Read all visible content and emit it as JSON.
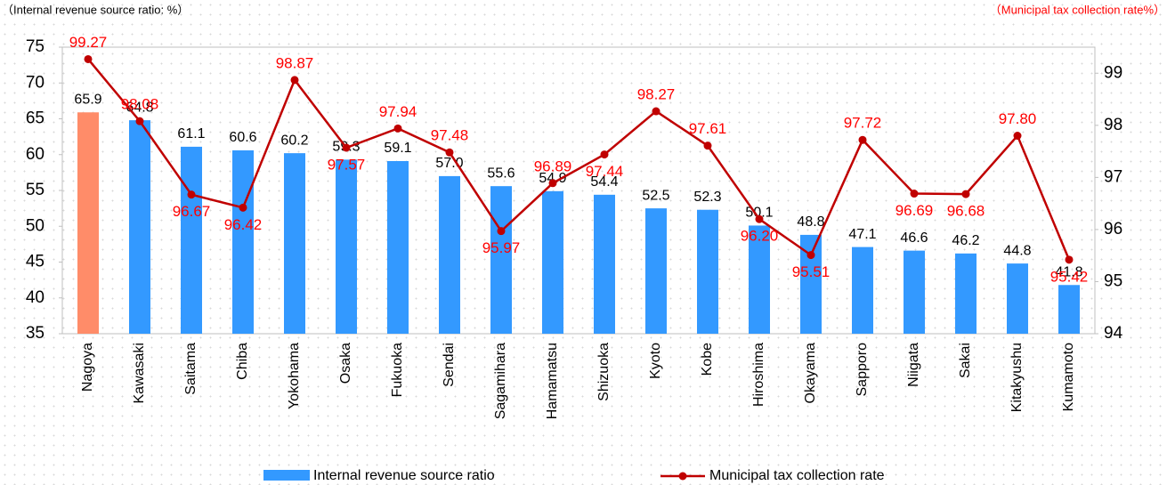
{
  "chart_data": {
    "type": "bar_line",
    "subtitle_left": "（Internal revenue source ratio: %）",
    "subtitle_right": "（Municipal tax collection rate%）",
    "categories": [
      "Nagoya",
      "Kawasaki",
      "Saitama",
      "Chiba",
      "Yokohama",
      "Osaka",
      "Fukuoka",
      "Sendai",
      "Sagamihara",
      "Hamamatsu",
      "Shizuoka",
      "Kyoto",
      "Kobe",
      "Hiroshima",
      "Okayama",
      "Sapporo",
      "Niigata",
      "Sakai",
      "Kitakyushu",
      "Kumamoto"
    ],
    "series": [
      {
        "name": "Internal revenue source ratio",
        "type": "bar",
        "color": "#3399ff",
        "colors": [
          "#ff8c69",
          "#3399ff",
          "#3399ff",
          "#3399ff",
          "#3399ff",
          "#3399ff",
          "#3399ff",
          "#3399ff",
          "#3399ff",
          "#3399ff",
          "#3399ff",
          "#3399ff",
          "#3399ff",
          "#3399ff",
          "#3399ff",
          "#3399ff",
          "#3399ff",
          "#3399ff",
          "#3399ff",
          "#3399ff"
        ],
        "values": [
          65.9,
          64.8,
          61.1,
          60.6,
          60.2,
          59.3,
          59.1,
          57.0,
          55.6,
          54.9,
          54.4,
          52.5,
          52.3,
          50.1,
          48.8,
          47.1,
          46.6,
          46.2,
          44.8,
          41.8
        ],
        "value_labels": [
          "65.9",
          "64.8",
          "61.1",
          "60.6",
          "60.2",
          "59.3",
          "59.1",
          "57.0",
          "55.6",
          "54.9",
          "54.4",
          "52.5",
          "52.3",
          "50.1",
          "48.8",
          "47.1",
          "46.6",
          "46.2",
          "44.8",
          "41.8"
        ]
      },
      {
        "name": "Municipal tax collection rate",
        "type": "line",
        "axis": "y2",
        "color": "#c00000",
        "label_color": "#ff0000",
        "values": [
          99.27,
          98.08,
          96.67,
          96.42,
          98.87,
          97.57,
          97.94,
          97.48,
          95.97,
          96.89,
          97.44,
          98.27,
          97.61,
          96.2,
          95.51,
          97.72,
          96.69,
          96.68,
          97.8,
          95.42
        ],
        "value_labels": [
          "99.27",
          "98.08",
          "96.67",
          "96.42",
          "98.87",
          "97.57",
          "97.94",
          "97.48",
          "95.97",
          "96.89",
          "97.44",
          "98.27",
          "97.61",
          "96.20",
          "95.51",
          "97.72",
          "96.69",
          "96.68",
          "97.80",
          "95.42"
        ]
      }
    ],
    "ylim": [
      35,
      75
    ],
    "yticks": [
      35,
      40,
      45,
      50,
      55,
      60,
      65,
      70,
      75
    ],
    "y2lim": [
      94,
      99.5
    ],
    "y2ticks": [
      94,
      95,
      96,
      97,
      98,
      99
    ]
  }
}
